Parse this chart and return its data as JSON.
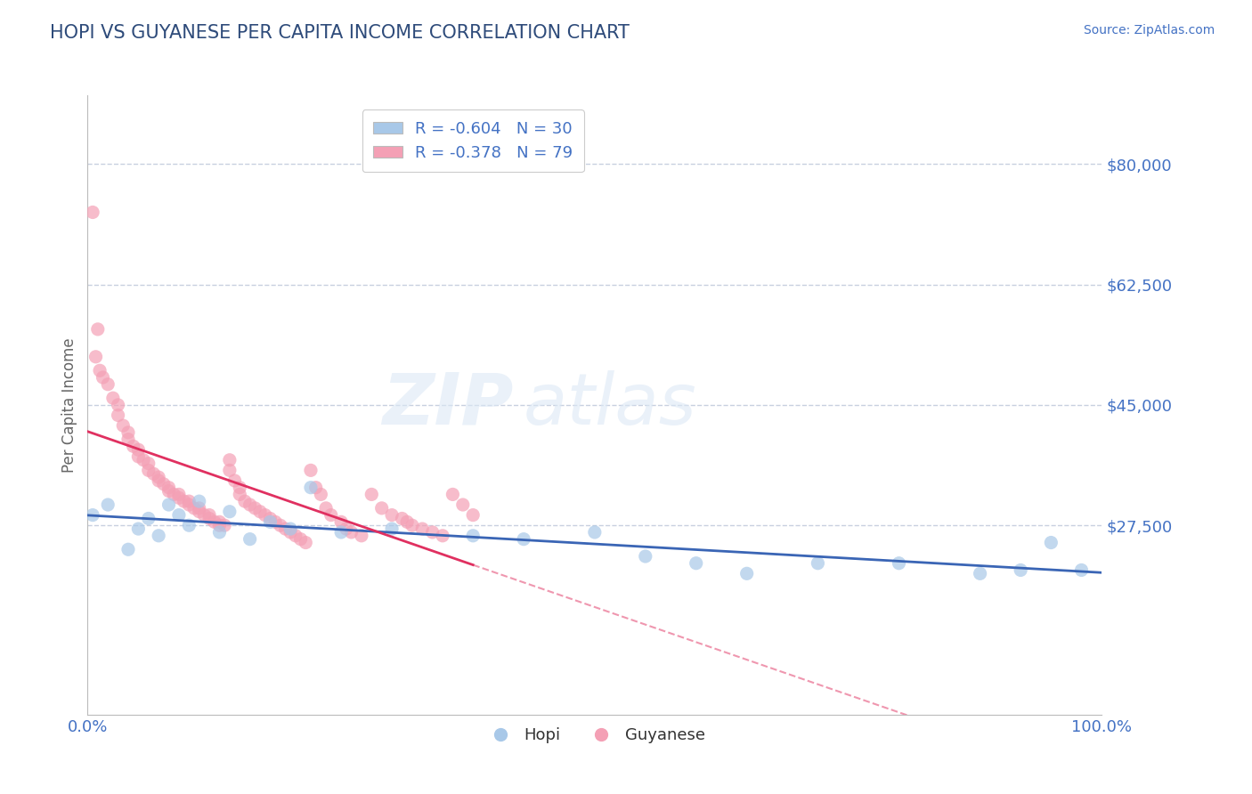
{
  "title": "HOPI VS GUYANESE PER CAPITA INCOME CORRELATION CHART",
  "source": "Source: ZipAtlas.com",
  "ylabel": "Per Capita Income",
  "watermark_zip": "ZIP",
  "watermark_atlas": "atlas",
  "ylim": [
    0,
    90000
  ],
  "xlim": [
    0.0,
    1.0
  ],
  "yticks": [
    0,
    27500,
    45000,
    62500,
    80000
  ],
  "ytick_labels": [
    "",
    "$27,500",
    "$45,000",
    "$62,500",
    "$80,000"
  ],
  "xtick_labels": [
    "0.0%",
    "100.0%"
  ],
  "hopi_color": "#a8c8e8",
  "guyanese_color": "#f4a0b5",
  "hopi_line_color": "#3a65b5",
  "guyanese_line_color": "#e03060",
  "legend_hopi_label": "R = -0.604   N = 30",
  "legend_guyanese_label": "R = -0.378   N = 79",
  "title_color": "#2e4b7a",
  "axis_label_color": "#4472c4",
  "grid_color": "#c8d0e0",
  "background_color": "#ffffff",
  "hopi_x": [
    0.005,
    0.02,
    0.04,
    0.05,
    0.06,
    0.07,
    0.08,
    0.09,
    0.1,
    0.11,
    0.13,
    0.14,
    0.16,
    0.18,
    0.2,
    0.22,
    0.25,
    0.3,
    0.38,
    0.43,
    0.5,
    0.55,
    0.6,
    0.65,
    0.72,
    0.8,
    0.88,
    0.92,
    0.95,
    0.98
  ],
  "hopi_y": [
    29000,
    30500,
    24000,
    27000,
    28500,
    26000,
    30500,
    29000,
    27500,
    31000,
    26500,
    29500,
    25500,
    28000,
    27000,
    33000,
    26500,
    27000,
    26000,
    25500,
    26500,
    23000,
    22000,
    20500,
    22000,
    22000,
    20500,
    21000,
    25000,
    21000
  ],
  "guyanese_x": [
    0.005,
    0.008,
    0.01,
    0.012,
    0.015,
    0.02,
    0.025,
    0.03,
    0.03,
    0.035,
    0.04,
    0.04,
    0.045,
    0.05,
    0.05,
    0.055,
    0.06,
    0.06,
    0.065,
    0.07,
    0.07,
    0.075,
    0.08,
    0.08,
    0.085,
    0.09,
    0.09,
    0.095,
    0.1,
    0.1,
    0.105,
    0.11,
    0.11,
    0.115,
    0.12,
    0.12,
    0.125,
    0.13,
    0.13,
    0.135,
    0.14,
    0.14,
    0.145,
    0.15,
    0.15,
    0.155,
    0.16,
    0.165,
    0.17,
    0.175,
    0.18,
    0.185,
    0.19,
    0.195,
    0.2,
    0.205,
    0.21,
    0.215,
    0.22,
    0.225,
    0.23,
    0.235,
    0.24,
    0.25,
    0.255,
    0.26,
    0.27,
    0.28,
    0.29,
    0.3,
    0.31,
    0.315,
    0.32,
    0.33,
    0.34,
    0.35,
    0.36,
    0.37,
    0.38
  ],
  "guyanese_y": [
    73000,
    52000,
    56000,
    50000,
    49000,
    48000,
    46000,
    45000,
    43500,
    42000,
    41000,
    40000,
    39000,
    38500,
    37500,
    37000,
    36500,
    35500,
    35000,
    34500,
    34000,
    33500,
    33000,
    32500,
    32000,
    32000,
    31500,
    31000,
    31000,
    30500,
    30000,
    30000,
    29500,
    29000,
    29000,
    28500,
    28000,
    28000,
    27500,
    27500,
    37000,
    35500,
    34000,
    33000,
    32000,
    31000,
    30500,
    30000,
    29500,
    29000,
    28500,
    28000,
    27500,
    27000,
    26500,
    26000,
    25500,
    25000,
    35500,
    33000,
    32000,
    30000,
    29000,
    28000,
    27000,
    26500,
    26000,
    32000,
    30000,
    29000,
    28500,
    28000,
    27500,
    27000,
    26500,
    26000,
    32000,
    30500,
    29000
  ]
}
